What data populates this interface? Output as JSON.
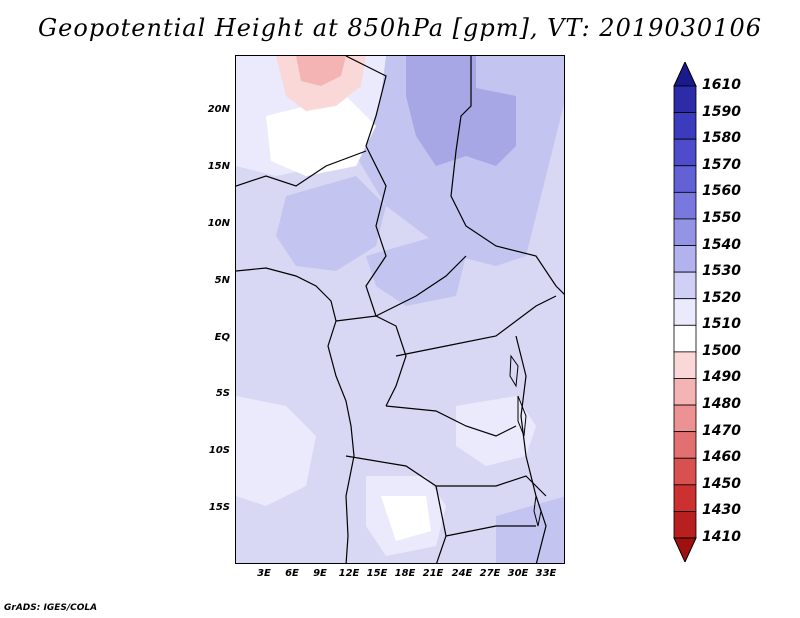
{
  "title": "Geopotential Height at 850hPa [gpm], VT: 2019030106",
  "credit": "GrADS: IGES/COLA",
  "axes": {
    "lat_labels": [
      "20N",
      "15N",
      "10N",
      "5N",
      "EQ",
      "5S",
      "10S",
      "15S"
    ],
    "lon_labels": [
      "3E",
      "6E",
      "9E",
      "12E",
      "15E",
      "18E",
      "21E",
      "24E",
      "27E",
      "30E",
      "33E"
    ]
  },
  "colorbar": {
    "levels": [
      "1610",
      "1590",
      "1580",
      "1570",
      "1560",
      "1550",
      "1540",
      "1530",
      "1520",
      "1510",
      "1500",
      "1490",
      "1480",
      "1470",
      "1460",
      "1450",
      "1430",
      "1410"
    ],
    "colors": [
      "#1a1a8c",
      "#2c2ca8",
      "#3b3bbe",
      "#4d4dcc",
      "#6262d6",
      "#7878de",
      "#9494e6",
      "#b2b2ee",
      "#d0d0f6",
      "#eaeafc",
      "#ffffff",
      "#fbd8d8",
      "#f4b4b4",
      "#ec9292",
      "#e27070",
      "#d85050",
      "#cc3030",
      "#b82020",
      "#a01010"
    ]
  }
}
